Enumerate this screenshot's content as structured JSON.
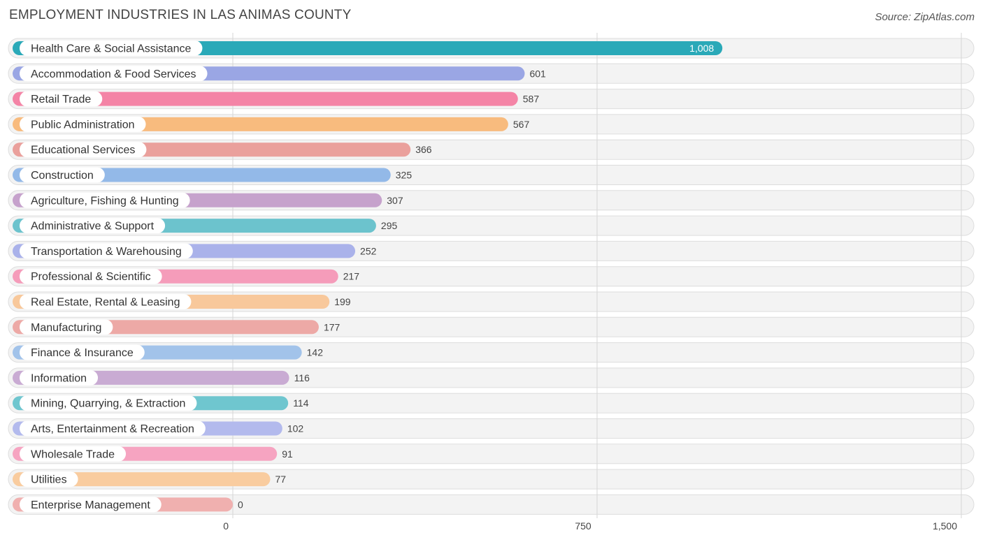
{
  "title": "Employment Industries in Las Animas County",
  "source": "Source: ZipAtlas.com",
  "chart_data": {
    "type": "bar",
    "orientation": "horizontal",
    "title": "Employment Industries in Las Animas County",
    "xlabel": "",
    "ylabel": "",
    "xlim": [
      0,
      1500
    ],
    "ticks": [
      {
        "value": 0,
        "label": "0"
      },
      {
        "value": 750,
        "label": "750"
      },
      {
        "value": 1500,
        "label": "1,500"
      }
    ],
    "bars": [
      {
        "category": "Health Care & Social Assistance",
        "value": 1008,
        "label": "1,008",
        "color": "#2aa9b8"
      },
      {
        "category": "Accommodation & Food Services",
        "value": 601,
        "label": "601",
        "color": "#9aa6e4"
      },
      {
        "category": "Retail Trade",
        "value": 587,
        "label": "587",
        "color": "#f484a6"
      },
      {
        "category": "Public Administration",
        "value": 567,
        "label": "567",
        "color": "#f8bb7e"
      },
      {
        "category": "Educational Services",
        "value": 366,
        "label": "366",
        "color": "#eaa09c"
      },
      {
        "category": "Construction",
        "value": 325,
        "label": "325",
        "color": "#93b9e8"
      },
      {
        "category": "Agriculture, Fishing & Hunting",
        "value": 307,
        "label": "307",
        "color": "#c6a2cc"
      },
      {
        "category": "Administrative & Support",
        "value": 295,
        "label": "295",
        "color": "#6cc3cd"
      },
      {
        "category": "Transportation & Warehousing",
        "value": 252,
        "label": "252",
        "color": "#aab2ea"
      },
      {
        "category": "Professional & Scientific",
        "value": 217,
        "label": "217",
        "color": "#f59cba"
      },
      {
        "category": "Real Estate, Rental & Leasing",
        "value": 199,
        "label": "199",
        "color": "#f8c89b"
      },
      {
        "category": "Manufacturing",
        "value": 177,
        "label": "177",
        "color": "#eda9a6"
      },
      {
        "category": "Finance & Insurance",
        "value": 142,
        "label": "142",
        "color": "#a2c3ea"
      },
      {
        "category": "Information",
        "value": 116,
        "label": "116",
        "color": "#c9abd3"
      },
      {
        "category": "Mining, Quarrying, & Extraction",
        "value": 114,
        "label": "114",
        "color": "#6fc6cf"
      },
      {
        "category": "Arts, Entertainment & Recreation",
        "value": 102,
        "label": "102",
        "color": "#b3baed"
      },
      {
        "category": "Wholesale Trade",
        "value": 91,
        "label": "91",
        "color": "#f6a4c1"
      },
      {
        "category": "Utilities",
        "value": 77,
        "label": "77",
        "color": "#f9cc9f"
      },
      {
        "category": "Enterprise Management",
        "value": 0,
        "label": "0",
        "color": "#f0b0af"
      }
    ]
  }
}
